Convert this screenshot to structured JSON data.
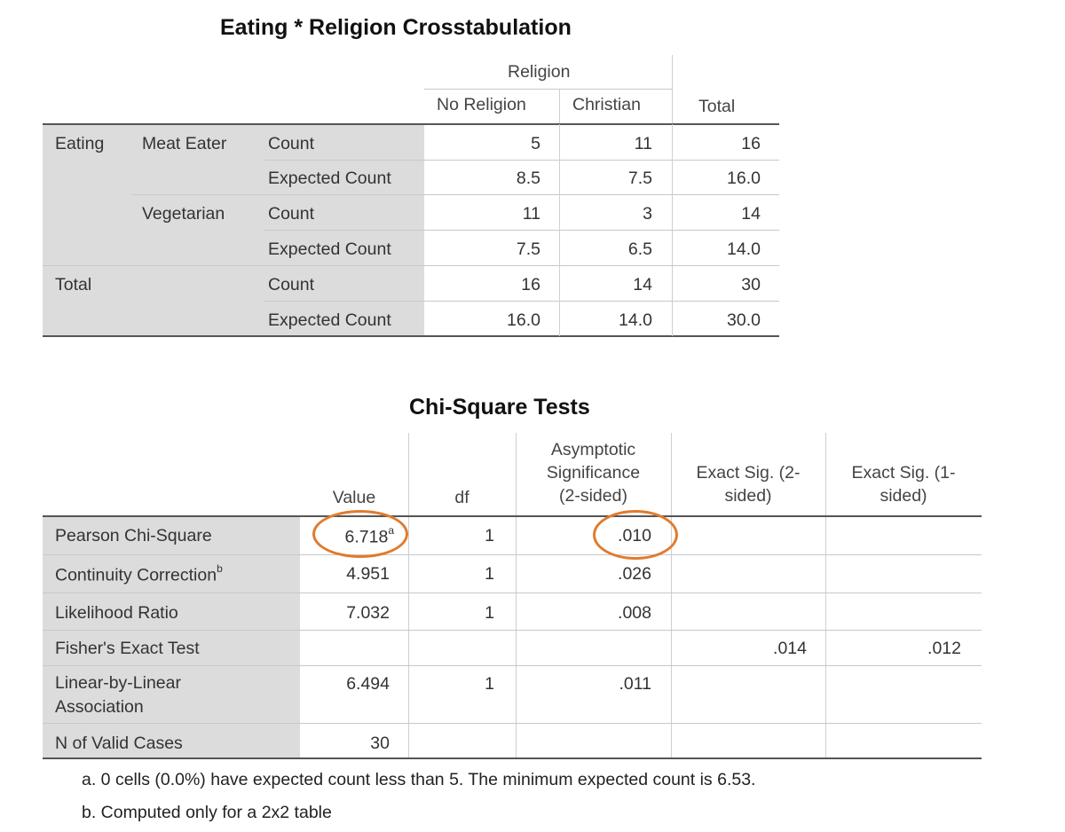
{
  "crosstab": {
    "title": "Eating * Religion Crosstabulation",
    "group_header": "Religion",
    "col_headers": [
      "No Religion",
      "Christian",
      "Total"
    ],
    "row_var": "Eating",
    "total_label": "Total",
    "levels": [
      "Meat Eater",
      "Vegetarian"
    ],
    "stat_labels": [
      "Count",
      "Expected Count"
    ],
    "rows": [
      [
        "5",
        "11",
        "16"
      ],
      [
        "8.5",
        "7.5",
        "16.0"
      ],
      [
        "11",
        "3",
        "14"
      ],
      [
        "7.5",
        "6.5",
        "14.0"
      ],
      [
        "16",
        "14",
        "30"
      ],
      [
        "16.0",
        "14.0",
        "30.0"
      ]
    ]
  },
  "chisq": {
    "title": "Chi-Square Tests",
    "headers": {
      "value": "Value",
      "df": "df",
      "asymp": [
        "Asymptotic",
        "Significance",
        "(2-sided)"
      ],
      "exact2": [
        "Exact Sig. (2-",
        "sided)"
      ],
      "exact1": [
        "Exact Sig. (1-",
        "sided)"
      ]
    },
    "rows": [
      {
        "label": "Pearson Chi-Square",
        "value": "6.718",
        "sup": "a",
        "df": "1",
        "asymp": ".010",
        "exact2": "",
        "exact1": ""
      },
      {
        "label": "Continuity Correction",
        "sup_label": "b",
        "value": "4.951",
        "df": "1",
        "asymp": ".026",
        "exact2": "",
        "exact1": ""
      },
      {
        "label": "Likelihood Ratio",
        "value": "7.032",
        "df": "1",
        "asymp": ".008",
        "exact2": "",
        "exact1": ""
      },
      {
        "label": "Fisher's Exact Test",
        "value": "",
        "df": "",
        "asymp": "",
        "exact2": ".014",
        "exact1": ".012"
      },
      {
        "label_lines": [
          "Linear-by-Linear",
          "Association"
        ],
        "value": "6.494",
        "df": "1",
        "asymp": ".011",
        "exact2": "",
        "exact1": ""
      },
      {
        "label": "N of Valid Cases",
        "value": "30",
        "df": "",
        "asymp": "",
        "exact2": "",
        "exact1": ""
      }
    ],
    "footnotes": [
      "a. 0 cells (0.0%) have expected count less than 5. The minimum expected count is 6.53.",
      "b. Computed only for a 2x2 table"
    ],
    "highlight_color": "#e07b2e"
  }
}
